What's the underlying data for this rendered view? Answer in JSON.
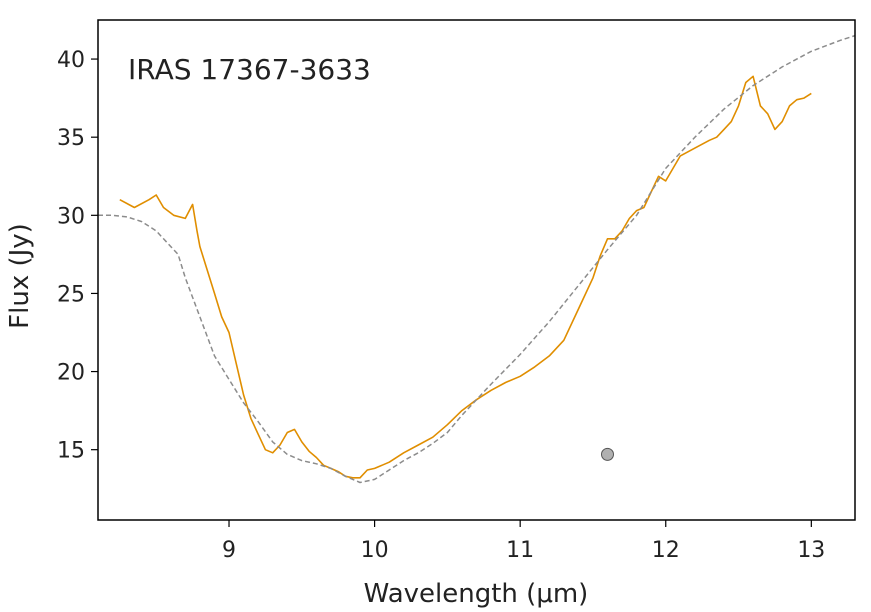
{
  "chart_data": {
    "type": "line",
    "annotation": "IRAS 17367-3633",
    "xlabel": "Wavelength (μm)",
    "ylabel": "Flux (Jy)",
    "xlim": [
      8.1,
      13.3
    ],
    "ylim": [
      10.5,
      42.5
    ],
    "grid": false,
    "xticks": [
      9,
      10,
      11,
      12,
      13
    ],
    "yticks": [
      15,
      20,
      25,
      30,
      35,
      40
    ],
    "series": [
      {
        "style": "solid",
        "color": "#E08E00",
        "x": [
          8.25,
          8.35,
          8.45,
          8.5,
          8.55,
          8.62,
          8.7,
          8.75,
          8.78,
          8.8,
          8.85,
          8.9,
          8.95,
          9.0,
          9.05,
          9.1,
          9.15,
          9.2,
          9.25,
          9.3,
          9.35,
          9.4,
          9.45,
          9.5,
          9.55,
          9.6,
          9.65,
          9.7,
          9.75,
          9.8,
          9.85,
          9.9,
          9.95,
          10.0,
          10.1,
          10.2,
          10.3,
          10.4,
          10.5,
          10.6,
          10.7,
          10.8,
          10.9,
          11.0,
          11.1,
          11.2,
          11.3,
          11.4,
          11.5,
          11.55,
          11.6,
          11.65,
          11.7,
          11.75,
          11.8,
          11.85,
          11.9,
          11.95,
          12.0,
          12.05,
          12.1,
          12.2,
          12.3,
          12.35,
          12.4,
          12.45,
          12.5,
          12.55,
          12.6,
          12.65,
          12.7,
          12.75,
          12.8,
          12.85,
          12.9,
          12.95,
          13.0
        ],
        "y": [
          31.0,
          30.5,
          31.0,
          31.3,
          30.5,
          30.0,
          29.8,
          30.7,
          29.0,
          28.0,
          26.5,
          25.0,
          23.5,
          22.5,
          20.5,
          18.5,
          17.0,
          16.0,
          15.0,
          14.8,
          15.3,
          16.1,
          16.3,
          15.5,
          14.9,
          14.5,
          14.0,
          13.8,
          13.6,
          13.3,
          13.2,
          13.2,
          13.7,
          13.8,
          14.2,
          14.8,
          15.3,
          15.8,
          16.6,
          17.5,
          18.2,
          18.8,
          19.3,
          19.7,
          20.3,
          21.0,
          22.0,
          24.0,
          26.0,
          27.4,
          28.5,
          28.5,
          29.0,
          29.8,
          30.3,
          30.5,
          31.5,
          32.5,
          32.2,
          33.0,
          33.8,
          34.3,
          34.8,
          35.0,
          35.5,
          36.0,
          37.0,
          38.5,
          38.9,
          37.0,
          36.5,
          35.5,
          36.0,
          37.0,
          37.4,
          37.5,
          37.8
        ]
      },
      {
        "style": "dashed",
        "color": "#8c8c8c",
        "x": [
          8.1,
          8.2,
          8.3,
          8.4,
          8.5,
          8.6,
          8.65,
          8.7,
          8.8,
          8.9,
          9.0,
          9.1,
          9.2,
          9.3,
          9.4,
          9.5,
          9.6,
          9.7,
          9.8,
          9.9,
          10.0,
          10.1,
          10.2,
          10.3,
          10.4,
          10.5,
          10.6,
          10.7,
          10.8,
          11.0,
          11.2,
          11.4,
          11.6,
          11.8,
          12.0,
          12.2,
          12.4,
          12.6,
          12.8,
          13.0,
          13.2,
          13.3
        ],
        "y": [
          30.0,
          30.0,
          29.9,
          29.6,
          29.0,
          28.0,
          27.5,
          26.0,
          23.5,
          21.0,
          19.5,
          18.0,
          16.8,
          15.5,
          14.7,
          14.3,
          14.1,
          13.8,
          13.3,
          12.9,
          13.1,
          13.7,
          14.3,
          14.8,
          15.4,
          16.1,
          17.2,
          18.2,
          19.2,
          21.1,
          23.2,
          25.5,
          27.8,
          30.0,
          33.0,
          35.0,
          36.8,
          38.3,
          39.5,
          40.5,
          41.2,
          41.5
        ]
      },
      {
        "style": "marker",
        "color": "#b0b0b0",
        "x": [
          11.6
        ],
        "y": [
          14.7
        ]
      }
    ]
  }
}
